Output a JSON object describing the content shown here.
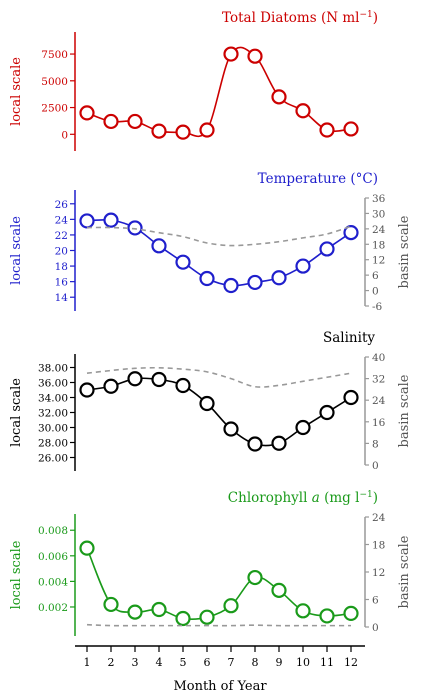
{
  "xaxis": {
    "label": "Month of Year",
    "ticks": [
      "1",
      "2",
      "3",
      "4",
      "5",
      "6",
      "7",
      "8",
      "9",
      "10",
      "11",
      "12"
    ]
  },
  "left_axis_label": "local scale",
  "right_axis_label": "basin scale",
  "chart_data": [
    {
      "type": "line",
      "title": "Total Diatoms (N ml",
      "title_sup": "−1",
      "title_end": ")",
      "color": "#cc0000",
      "x": [
        1,
        2,
        3,
        4,
        5,
        6,
        7,
        8,
        9,
        10,
        11,
        12
      ],
      "ylim": [
        -1000,
        9000
      ],
      "yticks": [
        "0",
        "2500",
        "5000",
        "7500"
      ],
      "series": [
        {
          "values": [
            2000,
            1200,
            1200,
            300,
            200,
            400,
            7500,
            7300,
            3500,
            2200,
            400,
            500
          ]
        }
      ]
    },
    {
      "type": "line",
      "title": "Temperature (°C)",
      "color": "#1f1fcc",
      "x": [
        1,
        2,
        3,
        4,
        5,
        6,
        7,
        8,
        9,
        10,
        11,
        12
      ],
      "ylim": [
        13,
        27
      ],
      "yticks": [
        "14",
        "16",
        "18",
        "20",
        "22",
        "24",
        "26"
      ],
      "right_ylim": [
        -6,
        36
      ],
      "right_yticks": [
        "-6",
        "0",
        "6",
        "12",
        "18",
        "24",
        "30",
        "36"
      ],
      "series": [
        {
          "values": [
            23.8,
            23.9,
            22.9,
            20.6,
            18.5,
            16.4,
            15.5,
            15.9,
            16.5,
            18.0,
            20.2,
            22.3
          ]
        },
        {
          "axis": "right",
          "style": "dashed",
          "color": "#999999",
          "values": [
            24.5,
            24.5,
            24.0,
            22.5,
            21.0,
            18.5,
            17.5,
            18.0,
            19.0,
            20.5,
            22.0,
            25.0
          ]
        }
      ]
    },
    {
      "type": "line",
      "title": "Salinity",
      "color": "#000000",
      "x": [
        1,
        2,
        3,
        4,
        5,
        6,
        7,
        8,
        9,
        10,
        11,
        12
      ],
      "ylim": [
        25,
        39
      ],
      "yticks": [
        "26.00",
        "28.00",
        "30.00",
        "32.00",
        "34.00",
        "36.00",
        "38.00"
      ],
      "right_ylim": [
        0,
        40
      ],
      "right_yticks": [
        "0",
        "8",
        "16",
        "24",
        "32",
        "40"
      ],
      "series": [
        {
          "values": [
            35.0,
            35.5,
            36.5,
            36.4,
            35.6,
            33.2,
            29.8,
            27.8,
            27.9,
            30.0,
            32.0,
            34.0
          ]
        },
        {
          "axis": "right",
          "style": "dashed",
          "color": "#999999",
          "values": [
            34.0,
            35.0,
            35.8,
            36.0,
            35.5,
            34.5,
            32.0,
            29.0,
            29.5,
            31.0,
            32.5,
            34.0
          ]
        }
      ]
    },
    {
      "type": "line",
      "title": "Chlorophyll ",
      "title_italic": "a",
      "title_end": " (mg l",
      "title_sup": "−1",
      "title_close": ")",
      "color": "#1a9a1a",
      "x": [
        1,
        2,
        3,
        4,
        5,
        6,
        7,
        8,
        9,
        10,
        11,
        12
      ],
      "ylim": [
        0.0002,
        0.0088
      ],
      "yticks": [
        "0.002",
        "0.004",
        "0.006",
        "0.008"
      ],
      "right_ylim": [
        0,
        24
      ],
      "right_yticks": [
        "0",
        "6",
        "12",
        "18",
        "24"
      ],
      "series": [
        {
          "values": [
            0.0066,
            0.0022,
            0.0016,
            0.0018,
            0.0011,
            0.0012,
            0.0021,
            0.0043,
            0.0033,
            0.0017,
            0.0013,
            0.0015
          ]
        },
        {
          "axis": "right",
          "style": "dashed",
          "color": "#999999",
          "values": [
            0.5,
            0.3,
            0.3,
            0.3,
            0.3,
            0.3,
            0.3,
            0.4,
            0.3,
            0.3,
            0.3,
            0.3
          ]
        }
      ]
    }
  ]
}
